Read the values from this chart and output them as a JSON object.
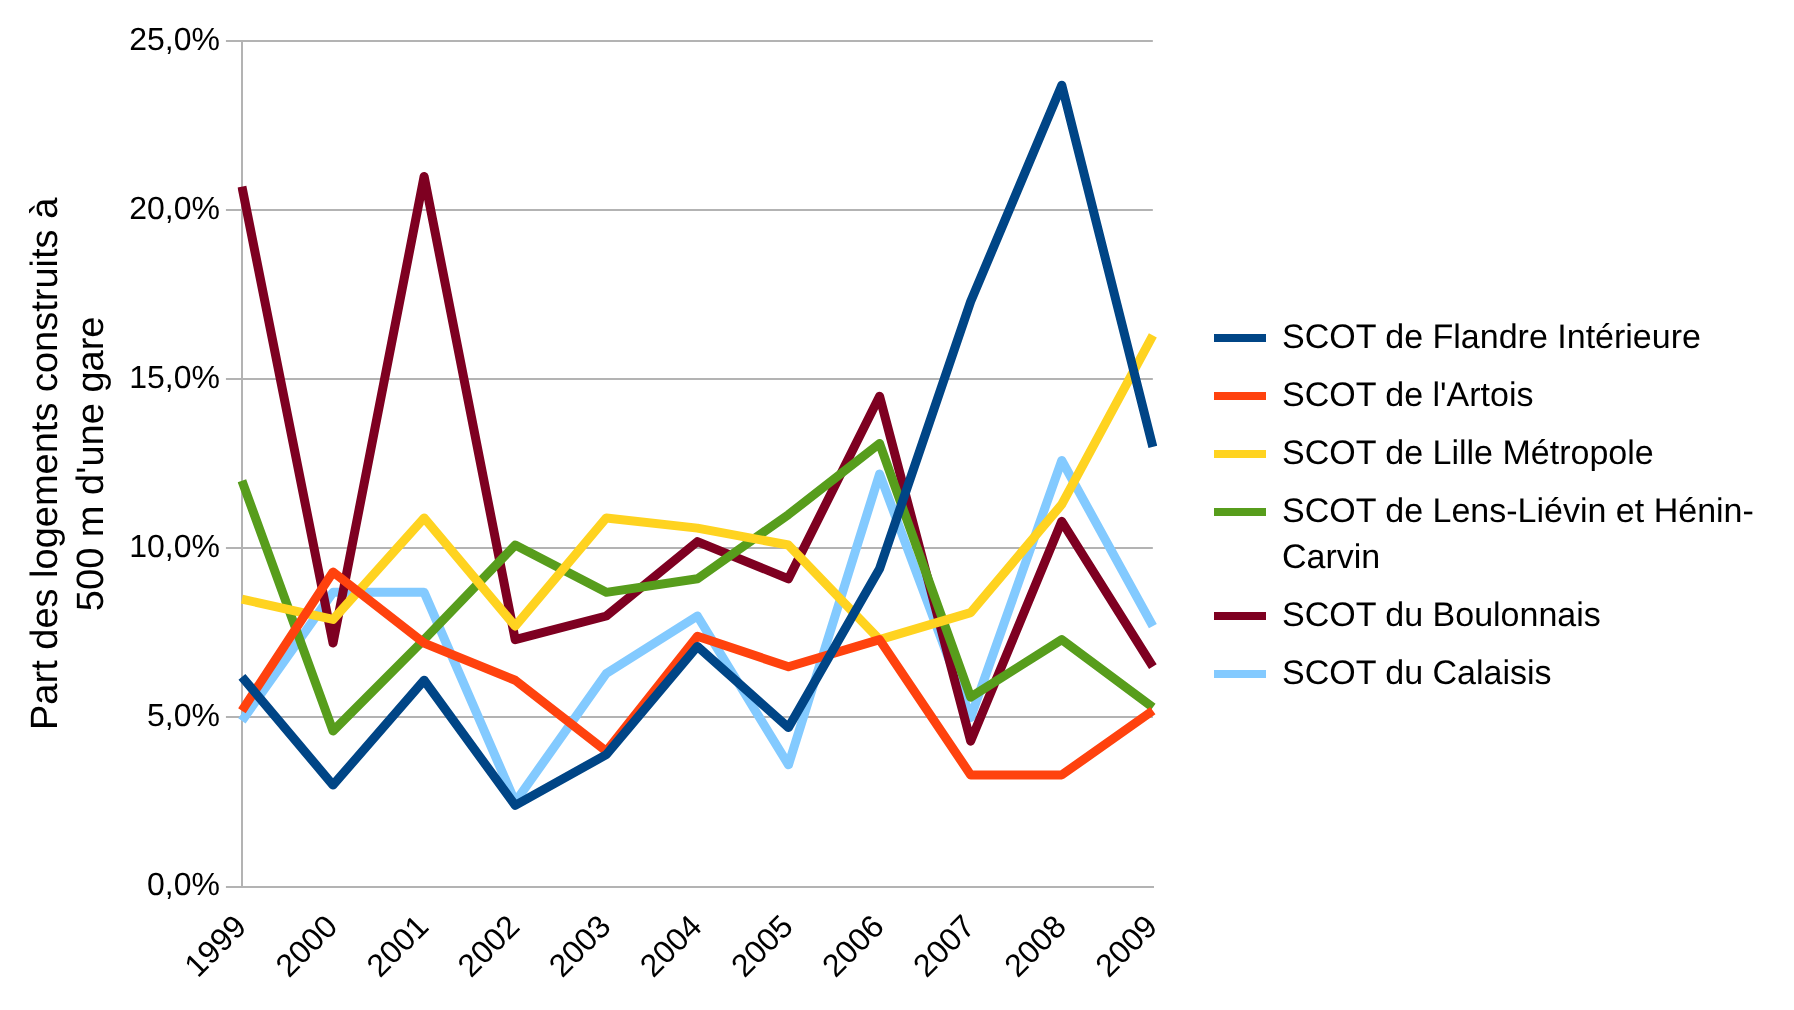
{
  "chart_data": {
    "type": "line",
    "ylabel": "Part des logements construits à 500 m d'une gare",
    "categories": [
      "1999",
      "2000",
      "2001",
      "2002",
      "2003",
      "2004",
      "2005",
      "2006",
      "2007",
      "2008",
      "2009"
    ],
    "series": [
      {
        "name": "SCOT de Flandre Intérieure",
        "color": "#004586",
        "values": [
          6.2,
          3.0,
          6.1,
          2.4,
          3.9,
          7.1,
          4.7,
          9.4,
          17.3,
          23.7,
          13.0
        ]
      },
      {
        "name": "SCOT de l'Artois",
        "color": "#ff420e",
        "values": [
          5.2,
          9.3,
          7.2,
          6.1,
          4.0,
          7.4,
          6.5,
          7.3,
          3.3,
          3.3,
          5.2
        ]
      },
      {
        "name": "SCOT de Lille Métropole",
        "color": "#ffd320",
        "values": [
          8.5,
          7.9,
          10.9,
          7.7,
          10.9,
          10.6,
          10.1,
          7.3,
          8.1,
          11.3,
          16.3
        ]
      },
      {
        "name": "SCOT de Lens-Liévin et Hénin-Carvin",
        "color": "#579d1c",
        "values": [
          12.0,
          4.6,
          7.3,
          10.1,
          8.7,
          9.1,
          11.0,
          13.1,
          5.6,
          7.3,
          5.3
        ]
      },
      {
        "name": "SCOT du Boulonnais",
        "color": "#7e0021",
        "values": [
          20.7,
          7.2,
          21.0,
          7.3,
          8.0,
          10.2,
          9.1,
          14.5,
          4.3,
          10.8,
          6.5
        ]
      },
      {
        "name": "SCOT du Calaisis",
        "color": "#83caff",
        "values": [
          4.9,
          8.7,
          8.7,
          2.5,
          6.3,
          8.0,
          3.6,
          12.2,
          5.0,
          12.6,
          7.7
        ]
      }
    ],
    "ylim": [
      0,
      25
    ],
    "yticks": [
      {
        "value": 0,
        "label": "0,0%"
      },
      {
        "value": 5,
        "label": "5,0%"
      },
      {
        "value": 10,
        "label": "10,0%"
      },
      {
        "value": 15,
        "label": "15,0%"
      },
      {
        "value": 20,
        "label": "20,0%"
      },
      {
        "value": 25,
        "label": "25,0%"
      }
    ],
    "grid": "y",
    "legend": "right",
    "marker": "none",
    "line_style": "solid"
  }
}
